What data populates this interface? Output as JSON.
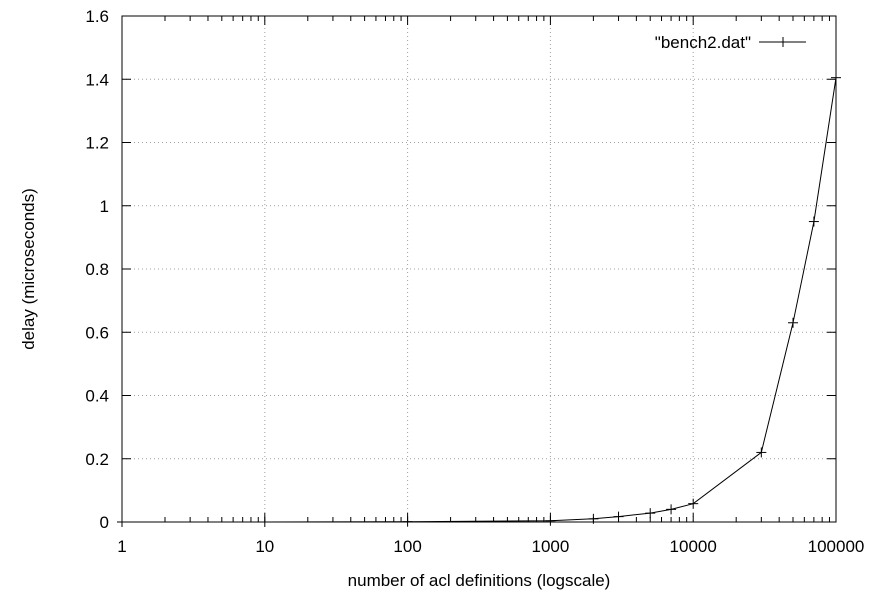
{
  "chart_data": {
    "type": "line",
    "title": "",
    "xlabel": "number of acl definitions (logscale)",
    "ylabel": "delay (microseconds)",
    "xscale": "log",
    "xlim": [
      1,
      100000
    ],
    "ylim": [
      0,
      1.6
    ],
    "grid": true,
    "legend_position": "top-right",
    "x_ticks": [
      1,
      10,
      100,
      1000,
      10000,
      100000
    ],
    "x_tick_labels": [
      "1",
      "10",
      "100",
      "1000",
      "10000",
      "100000"
    ],
    "y_ticks": [
      0,
      0.2,
      0.4,
      0.6,
      0.8,
      1.0,
      1.2,
      1.4,
      1.6
    ],
    "y_tick_labels": [
      "0",
      "0.2",
      "0.4",
      "0.6",
      "0.8",
      "1",
      "1.2",
      "1.4",
      "1.6"
    ],
    "series": [
      {
        "name": "\"bench2.dat\"",
        "color": "#000000",
        "marker": "plus",
        "x": [
          1,
          10,
          100,
          1000,
          2000,
          3000,
          5000,
          7000,
          10000,
          30000,
          50000,
          70000,
          100000
        ],
        "y": [
          0.0,
          0.0,
          0.001,
          0.004,
          0.01,
          0.017,
          0.028,
          0.04,
          0.058,
          0.22,
          0.63,
          0.95,
          1.405
        ]
      }
    ]
  }
}
